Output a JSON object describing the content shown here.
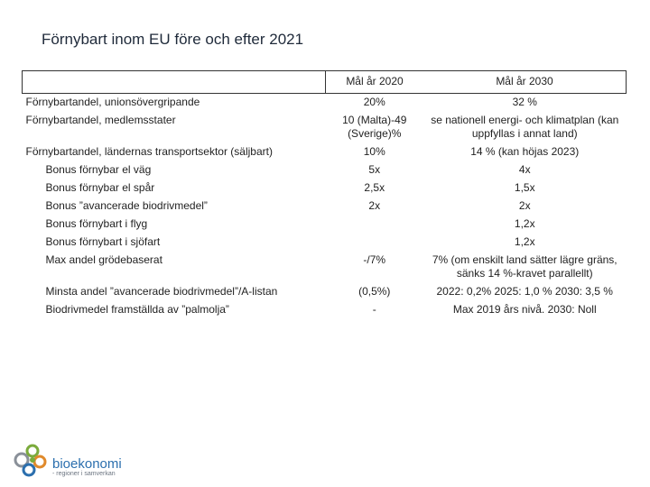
{
  "title": "Förnybart inom EU före och efter 2021",
  "table": {
    "headers": [
      "",
      "Mål år 2020",
      "Mål år 2030"
    ],
    "rows": [
      {
        "label": "Förnybartandel, unionsövergripande",
        "v2020": "20%",
        "v2030": "32 %",
        "indent": false
      },
      {
        "label": "Förnybartandel, medlemsstater",
        "v2020": "10 (Malta)-49 (Sverige)%",
        "v2030": "se nationell energi- och klimatplan (kan uppfyllas i annat land)",
        "indent": false
      },
      {
        "label": "Förnybartandel, ländernas transportsektor (säljbart)",
        "v2020": "10%",
        "v2030": "14 % (kan höjas 2023)",
        "indent": false
      },
      {
        "label": "Bonus förnybar el väg",
        "v2020": "5x",
        "v2030": "4x",
        "indent": true
      },
      {
        "label": "Bonus förnybar el spår",
        "v2020": "2,5x",
        "v2030": "1,5x",
        "indent": true
      },
      {
        "label": "Bonus ”avancerade biodrivmedel”",
        "v2020": "2x",
        "v2030": "2x",
        "indent": true
      },
      {
        "label": "Bonus förnybart i flyg",
        "v2020": "",
        "v2030": "1,2x",
        "indent": true
      },
      {
        "label": "Bonus förnybart i sjöfart",
        "v2020": "",
        "v2030": "1,2x",
        "indent": true
      },
      {
        "label": "Max andel grödebaserat",
        "v2020": "-/7%",
        "v2030": "7% (om enskilt land sätter lägre gräns, sänks 14 %-kravet parallellt)",
        "indent": true
      },
      {
        "label": "Minsta andel ”avancerade biodrivmedel”/A-listan",
        "v2020": "(0,5%)",
        "v2030": "2022: 0,2% 2025: 1,0 % 2030: 3,5 %",
        "indent": true
      },
      {
        "label": "Biodrivmedel framställda av ”palmolja”",
        "v2020": "-",
        "v2030": "Max 2019 års nivå. 2030: Noll",
        "indent": true
      }
    ]
  },
  "logo": {
    "name": "bioekonomi",
    "tagline": "- regioner i samverkan",
    "colors": {
      "blue": "#2b6fae",
      "green": "#7bab3c",
      "orange": "#e08a2c",
      "gray": "#8a9099"
    }
  }
}
